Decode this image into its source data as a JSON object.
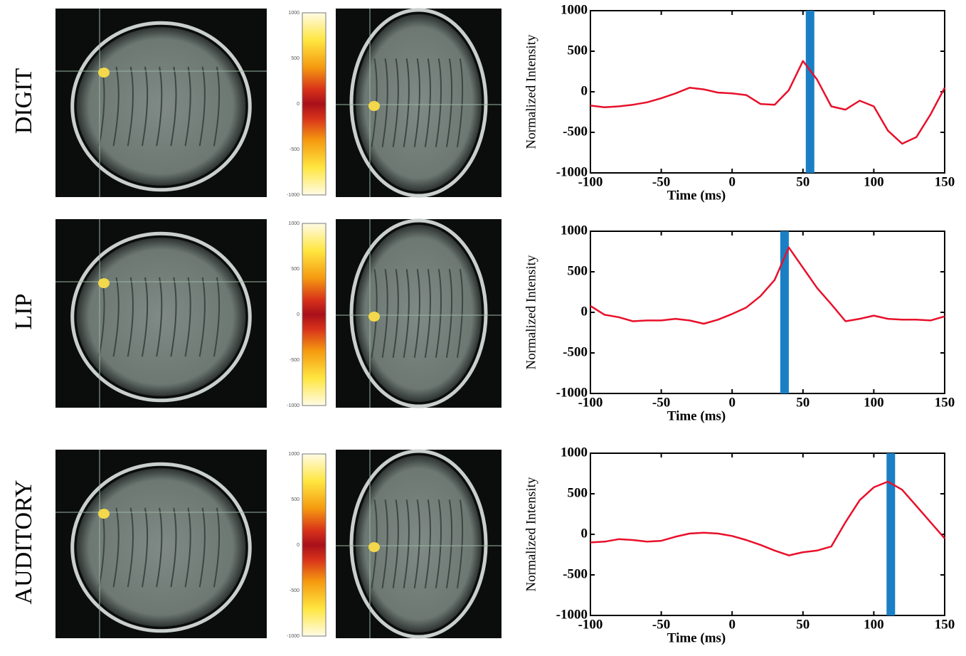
{
  "colorbar": {
    "ticks": [
      1000,
      500,
      0,
      -500,
      -1000
    ]
  },
  "chart_data": [
    {
      "type": "line",
      "row_label": "DIGIT",
      "xlabel": "Time (ms)",
      "ylabel": "Normalized Intensity",
      "x": [
        -100,
        -90,
        -80,
        -70,
        -60,
        -50,
        -40,
        -30,
        -20,
        -10,
        0,
        10,
        20,
        30,
        40,
        50,
        60,
        70,
        80,
        90,
        100,
        110,
        120,
        130,
        140,
        150
      ],
      "values": [
        -170,
        -190,
        -180,
        -160,
        -130,
        -80,
        -20,
        50,
        30,
        -10,
        -20,
        -40,
        -150,
        -160,
        20,
        380,
        150,
        -180,
        -220,
        -110,
        -180,
        -480,
        -640,
        -560,
        -280,
        50
      ],
      "color": "#e8102a",
      "marker_x": 55,
      "marker_color": "#1a7fc4",
      "xlim": [
        -100,
        150
      ],
      "ylim": [
        -1000,
        1000
      ],
      "xticks": [
        -100,
        -50,
        0,
        50,
        100,
        150
      ],
      "yticks": [
        -1000,
        -500,
        0,
        500,
        1000
      ]
    },
    {
      "type": "line",
      "row_label": "LIP",
      "xlabel": "Time (ms)",
      "ylabel": "Normalized Intensity",
      "x": [
        -100,
        -90,
        -80,
        -70,
        -60,
        -50,
        -40,
        -30,
        -20,
        -10,
        0,
        10,
        20,
        30,
        40,
        50,
        60,
        70,
        80,
        90,
        100,
        110,
        120,
        130,
        140,
        150
      ],
      "values": [
        80,
        -30,
        -60,
        -110,
        -100,
        -100,
        -80,
        -100,
        -140,
        -90,
        -20,
        60,
        200,
        400,
        800,
        550,
        300,
        100,
        -110,
        -80,
        -40,
        -80,
        -90,
        -90,
        -100,
        -50
      ],
      "color": "#e8102a",
      "marker_x": 37,
      "marker_color": "#1a7fc4",
      "xlim": [
        -100,
        150
      ],
      "ylim": [
        -1000,
        1000
      ],
      "xticks": [
        -100,
        -50,
        0,
        50,
        100,
        150
      ],
      "yticks": [
        -1000,
        -500,
        0,
        500,
        1000
      ]
    },
    {
      "type": "line",
      "row_label": "AUDITORY",
      "xlabel": "Time (ms)",
      "ylabel": "Normalized Intensity",
      "x": [
        -100,
        -90,
        -80,
        -70,
        -60,
        -50,
        -40,
        -30,
        -20,
        -10,
        0,
        10,
        20,
        30,
        40,
        50,
        60,
        70,
        80,
        90,
        100,
        110,
        120,
        130,
        140,
        150
      ],
      "values": [
        -100,
        -90,
        -60,
        -70,
        -90,
        -80,
        -30,
        10,
        20,
        10,
        -20,
        -70,
        -130,
        -200,
        -260,
        -220,
        -200,
        -150,
        150,
        420,
        580,
        650,
        550,
        350,
        150,
        -50
      ],
      "color": "#e8102a",
      "marker_x": 112,
      "marker_color": "#1a7fc4",
      "xlim": [
        -100,
        150
      ],
      "ylim": [
        -1000,
        1000
      ],
      "xticks": [
        -100,
        -50,
        0,
        50,
        100,
        150
      ],
      "yticks": [
        -1000,
        -500,
        0,
        500,
        1000
      ]
    }
  ]
}
